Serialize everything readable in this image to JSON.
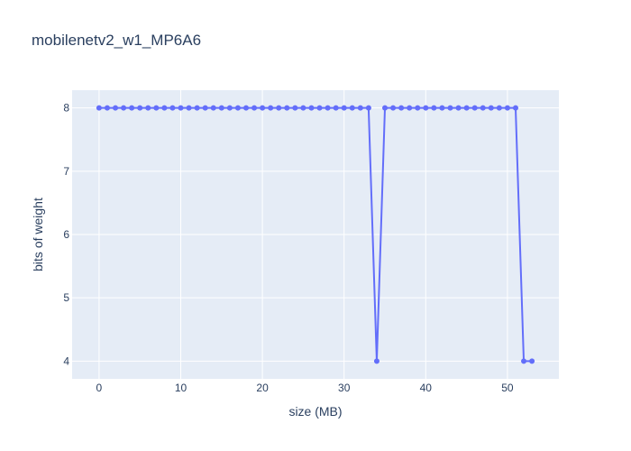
{
  "chart_data": {
    "type": "line",
    "title": "mobilenetv2_w1_MP6A6",
    "xlabel": "size (MB)",
    "ylabel": "bits of weight",
    "xlim": [
      -3.3,
      56.3
    ],
    "ylim": [
      3.72,
      8.28
    ],
    "xticks": [
      0,
      10,
      20,
      30,
      40,
      50
    ],
    "yticks": [
      4,
      5,
      6,
      7,
      8
    ],
    "grid": true,
    "legend": "none",
    "colors": {
      "plot_bg": "#e5ecf6",
      "grid": "#ffffff",
      "line": "#636efa",
      "text": "#2a3f5f"
    },
    "series": [
      {
        "x": [
          0,
          1,
          2,
          3,
          4,
          5,
          6,
          7,
          8,
          9,
          10,
          11,
          12,
          13,
          14,
          15,
          16,
          17,
          18,
          19,
          20,
          21,
          22,
          23,
          24,
          25,
          26,
          27,
          28,
          29,
          30,
          31,
          32,
          33,
          34,
          35,
          36,
          37,
          38,
          39,
          40,
          41,
          42,
          43,
          44,
          45,
          46,
          47,
          48,
          49,
          50,
          51,
          52,
          53
        ],
        "y": [
          8,
          8,
          8,
          8,
          8,
          8,
          8,
          8,
          8,
          8,
          8,
          8,
          8,
          8,
          8,
          8,
          8,
          8,
          8,
          8,
          8,
          8,
          8,
          8,
          8,
          8,
          8,
          8,
          8,
          8,
          8,
          8,
          8,
          8,
          4,
          8,
          8,
          8,
          8,
          8,
          8,
          8,
          8,
          8,
          8,
          8,
          8,
          8,
          8,
          8,
          8,
          8,
          4,
          4
        ]
      }
    ]
  }
}
